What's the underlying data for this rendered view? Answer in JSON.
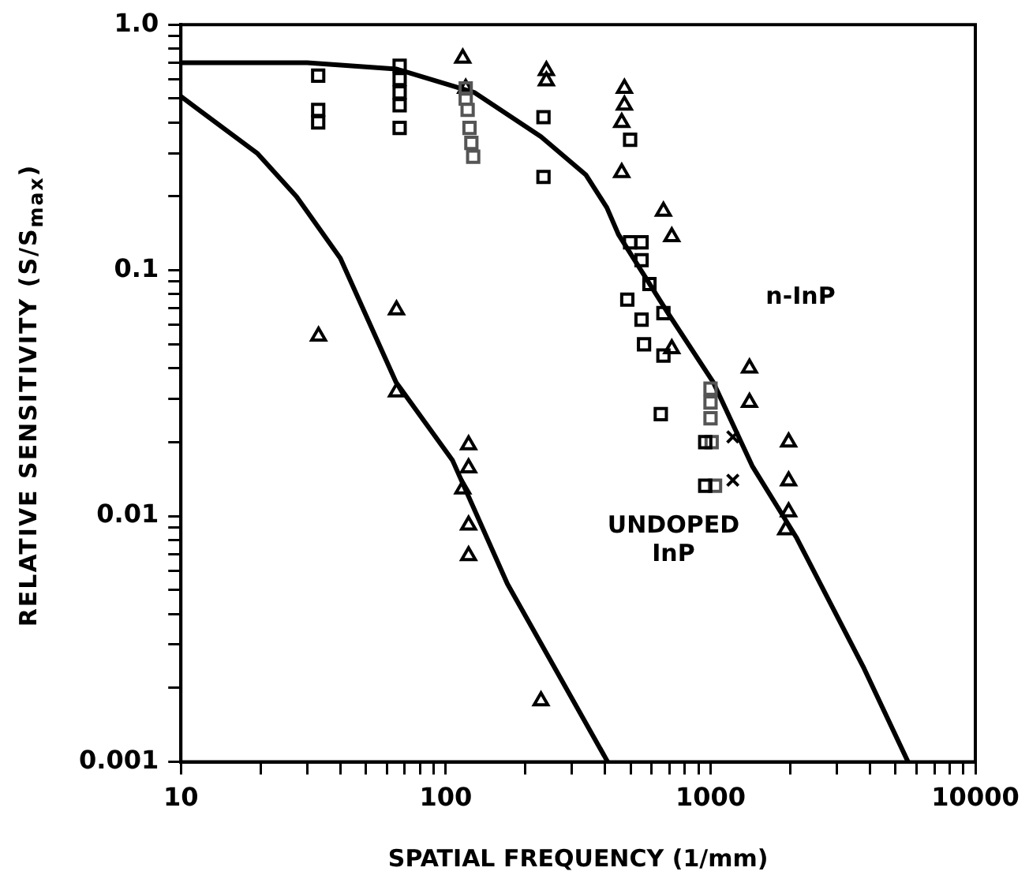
{
  "chart_data": {
    "type": "scatter",
    "xlabel": "SPATIAL FREQUENCY (1/mm)",
    "ylabel": "RELATIVE SENSITIVITY (S/S$_{max}$)",
    "log": "xy",
    "grid": false,
    "legend": false,
    "xlim": [
      10,
      10000
    ],
    "ylim": [
      0.001,
      1
    ],
    "xticks": [
      10,
      {
        "value": 20,
        "label": null
      },
      {
        "value": 30,
        "label": null
      },
      {
        "value": 40,
        "label": null
      },
      {
        "value": 50,
        "label": null
      },
      {
        "value": 60,
        "label": null
      },
      {
        "value": 70,
        "label": null
      },
      {
        "value": 80,
        "label": null
      },
      {
        "value": 90,
        "label": null
      },
      100,
      {
        "value": 200,
        "label": null
      },
      {
        "value": 300,
        "label": null
      },
      {
        "value": 400,
        "label": null
      },
      {
        "value": 500,
        "label": null
      },
      {
        "value": 600,
        "label": null
      },
      {
        "value": 700,
        "label": null
      },
      {
        "value": 800,
        "label": null
      },
      {
        "value": 900,
        "label": null
      },
      1000,
      {
        "value": 2000,
        "label": null
      },
      {
        "value": 3000,
        "label": null
      },
      {
        "value": 4000,
        "label": null
      },
      {
        "value": 5000,
        "label": null
      },
      {
        "value": 6000,
        "label": null
      },
      {
        "value": 7000,
        "label": null
      },
      {
        "value": 8000,
        "label": null
      },
      {
        "value": 9000,
        "label": null
      },
      10000
    ],
    "yticks": [
      0.001,
      {
        "value": 0.002,
        "label": null
      },
      {
        "value": 0.003,
        "label": null
      },
      {
        "value": 0.004,
        "label": null
      },
      {
        "value": 0.005,
        "label": null
      },
      {
        "value": 0.006,
        "label": null
      },
      {
        "value": 0.007,
        "label": null
      },
      {
        "value": 0.008,
        "label": null
      },
      {
        "value": 0.009,
        "label": null
      },
      0.01,
      {
        "value": 0.02,
        "label": null
      },
      {
        "value": 0.03,
        "label": null
      },
      {
        "value": 0.04,
        "label": null
      },
      {
        "value": 0.05,
        "label": null
      },
      {
        "value": 0.06,
        "label": null
      },
      {
        "value": 0.07,
        "label": null
      },
      {
        "value": 0.08,
        "label": null
      },
      {
        "value": 0.09,
        "label": null
      },
      0.1,
      {
        "value": 0.2,
        "label": null
      },
      {
        "value": 0.3,
        "label": null
      },
      {
        "value": 0.4,
        "label": null
      },
      {
        "value": 0.5,
        "label": null
      },
      {
        "value": 0.6,
        "label": null
      },
      {
        "value": 0.7,
        "label": null
      },
      {
        "value": 0.8,
        "label": null
      },
      {
        "value": 0.9,
        "label": null
      },
      {
        "value": 1,
        "label": "1.0"
      }
    ],
    "series": [
      {
        "marker": "square",
        "color": "#000000",
        "x": [
          33,
          33,
          33,
          67,
          67,
          67,
          67,
          67,
          234,
          234,
          497,
          497,
          549,
          549,
          588,
          485,
          664,
          549,
          561,
          664,
          649,
          955,
          955
        ],
        "values": [
          0.62,
          0.45,
          0.4,
          0.68,
          0.6,
          0.53,
          0.47,
          0.38,
          0.42,
          0.24,
          0.34,
          0.13,
          0.13,
          0.11,
          0.088,
          0.076,
          0.067,
          0.063,
          0.05,
          0.045,
          0.026,
          0.02,
          0.0133
        ]
      },
      {
        "marker": "square",
        "color": "#555555",
        "x": [
          119,
          119,
          121,
          123,
          125,
          127,
          1000,
          1000,
          1000,
          1010,
          1040
        ],
        "values": [
          0.55,
          0.5,
          0.45,
          0.38,
          0.33,
          0.29,
          0.033,
          0.029,
          0.025,
          0.02,
          0.0133
        ]
      },
      {
        "marker": "triangle",
        "color": "#000000",
        "x": [
          116,
          119,
          240,
          240,
          473,
          473,
          462,
          462,
          664,
          714,
          714,
          1403,
          1403,
          1972,
          1972,
          1972,
          1923
        ],
        "values": [
          0.73,
          0.55,
          0.65,
          0.59,
          0.55,
          0.47,
          0.4,
          0.25,
          0.174,
          0.137,
          0.048,
          0.04,
          0.029,
          0.02,
          0.0139,
          0.0104,
          0.0088
        ]
      },
      {
        "marker": "cross",
        "color": "#000000",
        "x": [
          1214,
          1214
        ],
        "values": [
          0.014,
          0.021
        ]
      },
      {
        "marker": "triangle",
        "color": "#000000",
        "x": [
          33.1,
          65.2,
          65.2,
          122,
          122,
          116,
          122,
          122,
          229
        ],
        "values": [
          0.054,
          0.069,
          0.032,
          0.0195,
          0.0157,
          0.0129,
          0.0092,
          0.0069,
          0.00177
        ]
      },
      {
        "type": "line",
        "marker": "none",
        "color": "#000000",
        "x": [
          10,
          30,
          65,
          128,
          229,
          338,
          406,
          449,
          697,
          1025,
          1437,
          2108,
          3800,
          5570
        ],
        "values": [
          0.7,
          0.7,
          0.66,
          0.53,
          0.35,
          0.245,
          0.18,
          0.14,
          0.066,
          0.035,
          0.016,
          0.0082,
          0.0024,
          0.001
        ]
      },
      {
        "type": "line",
        "marker": "none",
        "color": "#000000",
        "x": [
          10,
          19.4,
          27.3,
          40,
          65,
          106,
          171,
          409
        ],
        "values": [
          0.51,
          0.3,
          0.2,
          0.112,
          0.035,
          0.0169,
          0.0053,
          0.001
        ]
      }
    ],
    "annotations": [
      "n-InP",
      "UNDOPED InP"
    ]
  }
}
